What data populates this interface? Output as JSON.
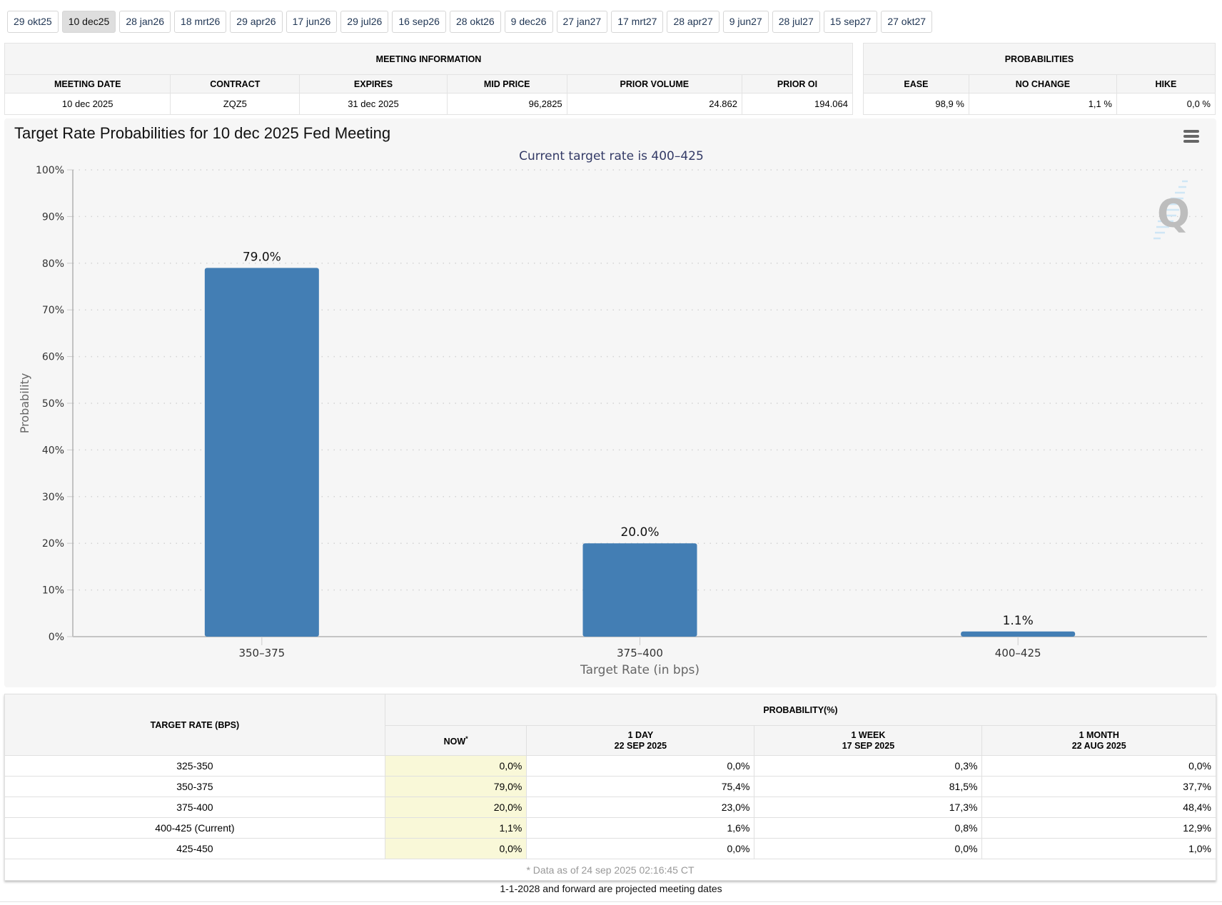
{
  "meeting_tabs": [
    {
      "label": "29 okt25",
      "active": false
    },
    {
      "label": "10 dec25",
      "active": true
    },
    {
      "label": "28 jan26",
      "active": false
    },
    {
      "label": "18 mrt26",
      "active": false
    },
    {
      "label": "29 apr26",
      "active": false
    },
    {
      "label": "17 jun26",
      "active": false
    },
    {
      "label": "29 jul26",
      "active": false
    },
    {
      "label": "16 sep26",
      "active": false
    },
    {
      "label": "28 okt26",
      "active": false
    },
    {
      "label": "9 dec26",
      "active": false
    },
    {
      "label": "27 jan27",
      "active": false
    },
    {
      "label": "17 mrt27",
      "active": false
    },
    {
      "label": "28 apr27",
      "active": false
    },
    {
      "label": "9 jun27",
      "active": false
    },
    {
      "label": "28 jul27",
      "active": false
    },
    {
      "label": "15 sep27",
      "active": false
    },
    {
      "label": "27 okt27",
      "active": false
    }
  ],
  "meeting_info": {
    "title": "MEETING INFORMATION",
    "headers": [
      "MEETING DATE",
      "CONTRACT",
      "EXPIRES",
      "MID PRICE",
      "PRIOR VOLUME",
      "PRIOR OI"
    ],
    "values": [
      "10 dec 2025",
      "ZQZ5",
      "31 dec 2025",
      "96,2825",
      "24.862",
      "194.064"
    ]
  },
  "probabilities": {
    "title": "PROBABILITIES",
    "headers": [
      "EASE",
      "NO CHANGE",
      "HIKE"
    ],
    "values": [
      "98,9 %",
      "1,1 %",
      "0,0 %"
    ]
  },
  "chart": {
    "menu_icon": "hamburger-menu-icon",
    "watermark_icon": "q-logo-icon"
  },
  "chart_data": {
    "type": "bar",
    "title": "Target Rate Probabilities for 10 dec 2025 Fed Meeting",
    "subtitle": "Current target rate is 400–425",
    "xlabel": "Target Rate (in bps)",
    "ylabel": "Probability",
    "categories": [
      "350–375",
      "375–400",
      "400–425"
    ],
    "values": [
      79.0,
      20.0,
      1.1
    ],
    "data_labels": [
      "79.0%",
      "20.0%",
      "1.1%"
    ],
    "ylim": [
      0,
      100
    ],
    "yticks": [
      0,
      10,
      20,
      30,
      40,
      50,
      60,
      70,
      80,
      90,
      100
    ],
    "ytick_labels": [
      "0%",
      "10%",
      "20%",
      "30%",
      "40%",
      "50%",
      "60%",
      "70%",
      "80%",
      "90%",
      "100%"
    ],
    "grid": true,
    "legend": "none",
    "bar_color": "#437eb4"
  },
  "rates_table": {
    "row_header": "TARGET RATE (BPS)",
    "group_header": "PROBABILITY(%)",
    "columns": [
      {
        "line1": "NOW",
        "line2": "",
        "marker": "*"
      },
      {
        "line1": "1 DAY",
        "line2": "22 SEP 2025",
        "marker": ""
      },
      {
        "line1": "1 WEEK",
        "line2": "17 SEP 2025",
        "marker": ""
      },
      {
        "line1": "1 MONTH",
        "line2": "22 AUG 2025",
        "marker": ""
      }
    ],
    "rows": [
      {
        "rate": "325-350",
        "values": [
          "0,0%",
          "0,0%",
          "0,3%",
          "0,0%"
        ]
      },
      {
        "rate": "350-375",
        "values": [
          "79,0%",
          "75,4%",
          "81,5%",
          "37,7%"
        ]
      },
      {
        "rate": "375-400",
        "values": [
          "20,0%",
          "23,0%",
          "17,3%",
          "48,4%"
        ]
      },
      {
        "rate": "400-425 (Current)",
        "values": [
          "1,1%",
          "1,6%",
          "0,8%",
          "12,9%"
        ]
      },
      {
        "rate": "425-450",
        "values": [
          "0,0%",
          "0,0%",
          "0,0%",
          "1,0%"
        ]
      }
    ],
    "note": "* Data as of 24 sep 2025 02:16:45 CT"
  },
  "footnote": "1-1-2028 and forward are projected meeting dates"
}
